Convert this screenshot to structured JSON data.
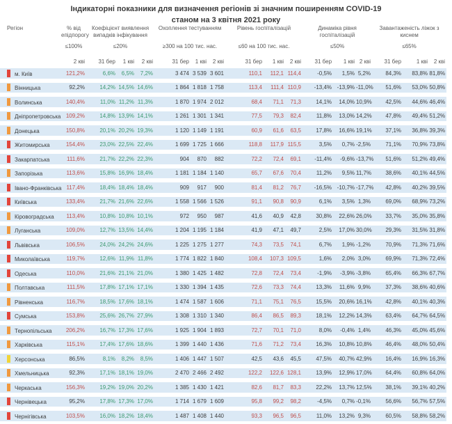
{
  "chart_data": {
    "type": "table",
    "title": "Індикаторні показники для визначення регіонів зі значним поширенням COVID-19",
    "subtitle": "станом на 3 квітня 2021 року",
    "region_label": "Регіон",
    "groups": [
      {
        "name": "% від епідпорогу",
        "threshold": "≤100%",
        "dates": [
          "2 кві"
        ]
      },
      {
        "name": "Коефіцієнт виявлення випадків інфікування",
        "threshold": "≤20%",
        "dates": [
          "31 бер",
          "1 кві",
          "2 кві"
        ]
      },
      {
        "name": "Охоплення тестуванням",
        "threshold": "≥300 на 100 тис. нас.",
        "dates": [
          "31 бер",
          "1 кві",
          "2 кві"
        ]
      },
      {
        "name": "Рівень госпіталізацій",
        "threshold": "≤60 на 100 тис. нас.",
        "dates": [
          "31 бер",
          "1 кві",
          "2 кві"
        ]
      },
      {
        "name": "Динаміка рівня госпіталізацій",
        "threshold": "≤50%",
        "dates": [
          "31 бер",
          "1 кві",
          "2 кві"
        ]
      },
      {
        "name": "Завантаженість ліжок з киснем",
        "threshold": "≤65%",
        "dates": [
          "31 бер",
          "1 кві",
          "2 кві"
        ]
      }
    ],
    "rows": [
      {
        "region": "м. Київ",
        "marker": "red",
        "epid": "121,2%",
        "epid_red": true,
        "coef": [
          "6,6%",
          "6,5%",
          "7,2%"
        ],
        "test": [
          "3 474",
          "3 539",
          "3 601"
        ],
        "hosp": [
          "110,1",
          "112,1",
          "114,4"
        ],
        "hosp_red": true,
        "dyn": [
          "-0,5%",
          "1,5%",
          "5,2%"
        ],
        "beds": [
          "84,3%",
          "83,8%",
          "81,8%"
        ]
      },
      {
        "region": "Вінницька",
        "marker": "orange",
        "epid": "92,2%",
        "epid_red": false,
        "coef": [
          "14,2%",
          "14,5%",
          "14,6%"
        ],
        "test": [
          "1 864",
          "1 818",
          "1 758"
        ],
        "hosp": [
          "113,4",
          "111,4",
          "110,9"
        ],
        "hosp_red": true,
        "dyn": [
          "-13,4%",
          "-13,9%",
          "-11,0%"
        ],
        "beds": [
          "51,6%",
          "53,0%",
          "50,8%"
        ]
      },
      {
        "region": "Волинська",
        "marker": "orange",
        "epid": "140,4%",
        "epid_red": true,
        "coef": [
          "11,0%",
          "11,2%",
          "11,3%"
        ],
        "test": [
          "1 870",
          "1 974",
          "2 012"
        ],
        "hosp": [
          "68,4",
          "71,1",
          "71,3"
        ],
        "hosp_red": true,
        "dyn": [
          "14,1%",
          "14,0%",
          "10,9%"
        ],
        "beds": [
          "42,5%",
          "44,6%",
          "46,4%"
        ]
      },
      {
        "region": "Дніпропетровська",
        "marker": "orange",
        "epid": "109,2%",
        "epid_red": true,
        "coef": [
          "14,8%",
          "13,9%",
          "14,1%"
        ],
        "test": [
          "1 261",
          "1 301",
          "1 341"
        ],
        "hosp": [
          "77,5",
          "79,3",
          "82,4"
        ],
        "hosp_red": true,
        "dyn": [
          "11,8%",
          "13,0%",
          "14,2%"
        ],
        "beds": [
          "47,8%",
          "49,4%",
          "51,2%"
        ]
      },
      {
        "region": "Донецька",
        "marker": "orange",
        "epid": "150,8%",
        "epid_red": true,
        "coef": [
          "20,1%",
          "20,2%",
          "19,3%"
        ],
        "test": [
          "1 120",
          "1 149",
          "1 191"
        ],
        "hosp": [
          "60,9",
          "61,6",
          "63,5"
        ],
        "hosp_red": true,
        "dyn": [
          "17,8%",
          "16,6%",
          "19,1%"
        ],
        "beds": [
          "37,1%",
          "36,8%",
          "39,3%"
        ]
      },
      {
        "region": "Житомирська",
        "marker": "red",
        "epid": "154,4%",
        "epid_red": true,
        "coef": [
          "23,0%",
          "22,5%",
          "22,4%"
        ],
        "test": [
          "1 699",
          "1 725",
          "1 666"
        ],
        "hosp": [
          "118,8",
          "117,9",
          "115,5"
        ],
        "hosp_red": true,
        "dyn": [
          "3,5%",
          "0,7%",
          "-2,5%"
        ],
        "beds": [
          "71,1%",
          "70,9%",
          "73,8%"
        ]
      },
      {
        "region": "Закарпатська",
        "marker": "red",
        "epid": "111,6%",
        "epid_red": true,
        "coef": [
          "21,7%",
          "22,2%",
          "22,3%"
        ],
        "test": [
          "904",
          "870",
          "882"
        ],
        "hosp": [
          "72,2",
          "72,4",
          "69,1"
        ],
        "hosp_red": true,
        "dyn": [
          "-11,4%",
          "-9,6%",
          "-13,7%"
        ],
        "beds": [
          "51,6%",
          "51,2%",
          "49,4%"
        ]
      },
      {
        "region": "Запорізька",
        "marker": "orange",
        "epid": "113,6%",
        "epid_red": true,
        "coef": [
          "15,8%",
          "16,9%",
          "18,4%"
        ],
        "test": [
          "1 181",
          "1 184",
          "1 140"
        ],
        "hosp": [
          "65,7",
          "67,6",
          "70,4"
        ],
        "hosp_red": true,
        "dyn": [
          "11,2%",
          "9,5%",
          "11,7%"
        ],
        "beds": [
          "38,6%",
          "40,1%",
          "44,5%"
        ]
      },
      {
        "region": "Івано-Франківська",
        "marker": "red",
        "epid": "117,4%",
        "epid_red": true,
        "coef": [
          "18,4%",
          "18,4%",
          "18,4%"
        ],
        "test": [
          "909",
          "917",
          "900"
        ],
        "hosp": [
          "81,4",
          "81,2",
          "76,7"
        ],
        "hosp_red": true,
        "dyn": [
          "-16,5%",
          "-10,7%",
          "-17,7%"
        ],
        "beds": [
          "42,8%",
          "40,2%",
          "39,5%"
        ]
      },
      {
        "region": "Київська",
        "marker": "red",
        "epid": "133,4%",
        "epid_red": true,
        "coef": [
          "21,7%",
          "21,6%",
          "22,6%"
        ],
        "test": [
          "1 558",
          "1 566",
          "1 526"
        ],
        "hosp": [
          "91,1",
          "90,8",
          "90,9"
        ],
        "hosp_red": true,
        "dyn": [
          "6,1%",
          "3,5%",
          "1,3%"
        ],
        "beds": [
          "69,0%",
          "68,9%",
          "73,2%"
        ]
      },
      {
        "region": "Кіровоградська",
        "marker": "orange",
        "epid": "113,4%",
        "epid_red": true,
        "coef": [
          "10,8%",
          "10,8%",
          "10,1%"
        ],
        "test": [
          "972",
          "950",
          "987"
        ],
        "hosp": [
          "41,6",
          "40,9",
          "42,8"
        ],
        "hosp_red": false,
        "dyn": [
          "30,8%",
          "22,6%",
          "26,0%"
        ],
        "beds": [
          "33,7%",
          "35,0%",
          "35,8%"
        ]
      },
      {
        "region": "Луганська",
        "marker": "orange",
        "epid": "109,0%",
        "epid_red": true,
        "coef": [
          "12,7%",
          "13,5%",
          "14,4%"
        ],
        "test": [
          "1 204",
          "1 195",
          "1 184"
        ],
        "hosp": [
          "41,9",
          "47,1",
          "49,7"
        ],
        "hosp_red": false,
        "dyn": [
          "2,5%",
          "17,0%",
          "30,0%"
        ],
        "beds": [
          "29,3%",
          "31,5%",
          "31,8%"
        ]
      },
      {
        "region": "Львівська",
        "marker": "red",
        "epid": "106,5%",
        "epid_red": true,
        "coef": [
          "24,0%",
          "24,2%",
          "24,6%"
        ],
        "test": [
          "1 225",
          "1 275",
          "1 277"
        ],
        "hosp": [
          "74,3",
          "73,5",
          "74,1"
        ],
        "hosp_red": true,
        "dyn": [
          "6,7%",
          "1,9%",
          "-1,2%"
        ],
        "beds": [
          "70,9%",
          "71,3%",
          "71,6%"
        ]
      },
      {
        "region": "Миколаївська",
        "marker": "red",
        "epid": "119,7%",
        "epid_red": true,
        "coef": [
          "12,6%",
          "11,9%",
          "11,8%"
        ],
        "test": [
          "1 774",
          "1 822",
          "1 840"
        ],
        "hosp": [
          "108,4",
          "107,3",
          "109,5"
        ],
        "hosp_red": true,
        "dyn": [
          "1,6%",
          "2,0%",
          "3,0%"
        ],
        "beds": [
          "69,9%",
          "71,3%",
          "72,4%"
        ]
      },
      {
        "region": "Одеська",
        "marker": "red",
        "epid": "110,0%",
        "epid_red": true,
        "coef": [
          "21,6%",
          "21,1%",
          "21,0%"
        ],
        "test": [
          "1 380",
          "1 425",
          "1 482"
        ],
        "hosp": [
          "72,8",
          "72,4",
          "73,4"
        ],
        "hosp_red": true,
        "dyn": [
          "-1,9%",
          "-3,9%",
          "-3,8%"
        ],
        "beds": [
          "65,4%",
          "66,3%",
          "67,7%"
        ]
      },
      {
        "region": "Полтавська",
        "marker": "orange",
        "epid": "111,5%",
        "epid_red": true,
        "coef": [
          "17,8%",
          "17,1%",
          "17,1%"
        ],
        "test": [
          "1 330",
          "1 394",
          "1 435"
        ],
        "hosp": [
          "72,6",
          "73,3",
          "74,4"
        ],
        "hosp_red": true,
        "dyn": [
          "13,3%",
          "11,6%",
          "9,9%"
        ],
        "beds": [
          "37,3%",
          "38,6%",
          "40,6%"
        ]
      },
      {
        "region": "Рівненська",
        "marker": "orange",
        "epid": "116,7%",
        "epid_red": true,
        "coef": [
          "18,5%",
          "17,6%",
          "18,1%"
        ],
        "test": [
          "1 474",
          "1 587",
          "1 606"
        ],
        "hosp": [
          "71,1",
          "75,1",
          "76,5"
        ],
        "hosp_red": true,
        "dyn": [
          "15,5%",
          "20,6%",
          "16,1%"
        ],
        "beds": [
          "42,8%",
          "40,1%",
          "40,3%"
        ]
      },
      {
        "region": "Сумська",
        "marker": "red",
        "epid": "153,8%",
        "epid_red": true,
        "coef": [
          "25,6%",
          "26,7%",
          "27,9%"
        ],
        "test": [
          "1 308",
          "1 310",
          "1 340"
        ],
        "hosp": [
          "86,4",
          "86,5",
          "89,3"
        ],
        "hosp_red": true,
        "dyn": [
          "18,1%",
          "12,2%",
          "14,3%"
        ],
        "beds": [
          "63,4%",
          "64,7%",
          "64,5%"
        ]
      },
      {
        "region": "Тернопільська",
        "marker": "orange",
        "epid": "206,2%",
        "epid_red": true,
        "coef": [
          "16,7%",
          "17,3%",
          "17,6%"
        ],
        "test": [
          "1 925",
          "1 904",
          "1 893"
        ],
        "hosp": [
          "72,7",
          "70,1",
          "71,0"
        ],
        "hosp_red": true,
        "dyn": [
          "8,0%",
          "-0,4%",
          "1,4%"
        ],
        "beds": [
          "46,3%",
          "45,0%",
          "45,6%"
        ]
      },
      {
        "region": "Харківська",
        "marker": "orange",
        "epid": "115,1%",
        "epid_red": true,
        "coef": [
          "17,4%",
          "17,6%",
          "18,6%"
        ],
        "test": [
          "1 399",
          "1 440",
          "1 436"
        ],
        "hosp": [
          "71,6",
          "71,2",
          "73,4"
        ],
        "hosp_red": true,
        "dyn": [
          "16,3%",
          "10,8%",
          "10,8%"
        ],
        "beds": [
          "46,4%",
          "48,0%",
          "50,4%"
        ]
      },
      {
        "region": "Херсонська",
        "marker": "yellow",
        "epid": "86,5%",
        "epid_red": false,
        "coef": [
          "8,1%",
          "8,2%",
          "8,5%"
        ],
        "test": [
          "1 406",
          "1 447",
          "1 507"
        ],
        "hosp": [
          "42,5",
          "43,6",
          "45,5"
        ],
        "hosp_red": false,
        "dyn": [
          "47,5%",
          "40,7%",
          "42,9%"
        ],
        "beds": [
          "16,4%",
          "16,9%",
          "16,3%"
        ]
      },
      {
        "region": "Хмельницька",
        "marker": "orange",
        "epid": "92,3%",
        "epid_red": false,
        "coef": [
          "17,1%",
          "18,1%",
          "19,0%"
        ],
        "test": [
          "2 470",
          "2 466",
          "2 492"
        ],
        "hosp": [
          "122,2",
          "122,6",
          "128,1"
        ],
        "hosp_red": true,
        "dyn": [
          "13,9%",
          "12,9%",
          "17,0%"
        ],
        "beds": [
          "64,4%",
          "60,8%",
          "64,0%"
        ]
      },
      {
        "region": "Черкаська",
        "marker": "orange",
        "epid": "156,3%",
        "epid_red": true,
        "coef": [
          "19,2%",
          "19,0%",
          "20,2%"
        ],
        "test": [
          "1 385",
          "1 430",
          "1 421"
        ],
        "hosp": [
          "82,6",
          "81,7",
          "83,3"
        ],
        "hosp_red": true,
        "dyn": [
          "22,2%",
          "13,7%",
          "12,5%"
        ],
        "beds": [
          "38,1%",
          "39,1%",
          "40,2%"
        ]
      },
      {
        "region": "Чернівецька",
        "marker": "red",
        "epid": "95,2%",
        "epid_red": false,
        "coef": [
          "17,8%",
          "17,3%",
          "17,0%"
        ],
        "test": [
          "1 714",
          "1 679",
          "1 609"
        ],
        "hosp": [
          "95,8",
          "99,2",
          "98,2"
        ],
        "hosp_red": true,
        "dyn": [
          "-4,5%",
          "0,7%",
          "-0,1%"
        ],
        "beds": [
          "56,6%",
          "56,7%",
          "57,5%"
        ]
      },
      {
        "region": "Чернігівська",
        "marker": "red",
        "epid": "103,5%",
        "epid_red": true,
        "coef": [
          "16,0%",
          "18,2%",
          "18,4%"
        ],
        "test": [
          "1 487",
          "1 408",
          "1 440"
        ],
        "hosp": [
          "93,3",
          "96,5",
          "96,5"
        ],
        "hosp_red": true,
        "dyn": [
          "11,0%",
          "13,2%",
          "9,3%"
        ],
        "beds": [
          "60,5%",
          "58,8%",
          "58,2%"
        ]
      }
    ]
  },
  "colors": {
    "marker_red": "#e2453b",
    "marker_orange": "#f0993f",
    "marker_yellow": "#f0d43a",
    "alert_text": "#c0504d",
    "ok_green_text": "#3d9970",
    "dark_text": "#3f3f3f",
    "row_band": "#dbe9f5",
    "header_text": "#595959"
  }
}
